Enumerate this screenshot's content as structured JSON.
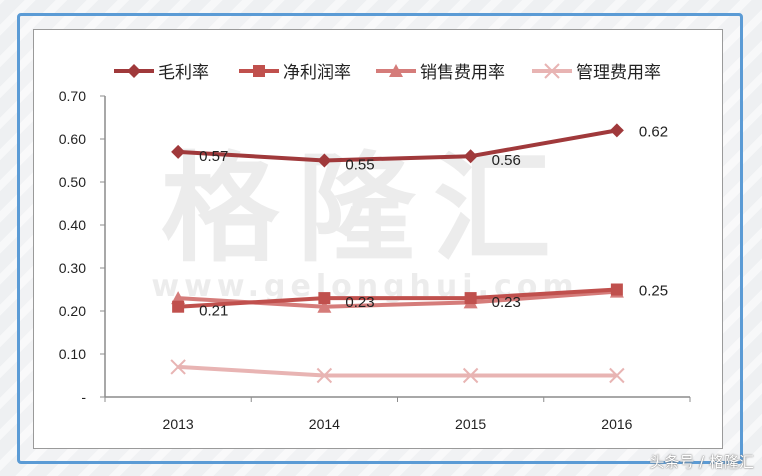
{
  "chart_data": {
    "type": "line",
    "title": "",
    "xlabel": "",
    "ylabel": "",
    "categories": [
      "2013",
      "2014",
      "2015",
      "2016"
    ],
    "ylim": [
      0,
      0.7
    ],
    "yticks": [
      "-",
      "0.10",
      "0.20",
      "0.30",
      "0.40",
      "0.50",
      "0.60",
      "0.70"
    ],
    "ytick_values": [
      0,
      0.1,
      0.2,
      0.3,
      0.4,
      0.5,
      0.6,
      0.7
    ],
    "grid": false,
    "legend_position": "top",
    "series": [
      {
        "name": "毛利率",
        "values": [
          0.57,
          0.55,
          0.56,
          0.62
        ],
        "marker": "diamond",
        "color": "#a0393b",
        "labels": [
          "0.57",
          "0.55",
          "0.56",
          "0.62"
        ]
      },
      {
        "name": "净利润率",
        "values": [
          0.21,
          0.23,
          0.23,
          0.25
        ],
        "marker": "square",
        "color": "#c0504d",
        "labels": [
          "0.21",
          "0.23",
          "0.23",
          "0.25"
        ]
      },
      {
        "name": "销售费用率",
        "values": [
          0.23,
          0.21,
          0.22,
          0.245
        ],
        "marker": "triangle",
        "color": "#d57c7a",
        "labels": []
      },
      {
        "name": "管理费用率",
        "values": [
          0.07,
          0.05,
          0.05,
          0.05
        ],
        "marker": "x",
        "color": "#e8b4b3",
        "labels": []
      }
    ],
    "watermark": {
      "text_cn": "格隆汇",
      "text_url": "www.gelonghui.com"
    }
  },
  "footer": {
    "credit": "头条号 / 格隆汇"
  }
}
